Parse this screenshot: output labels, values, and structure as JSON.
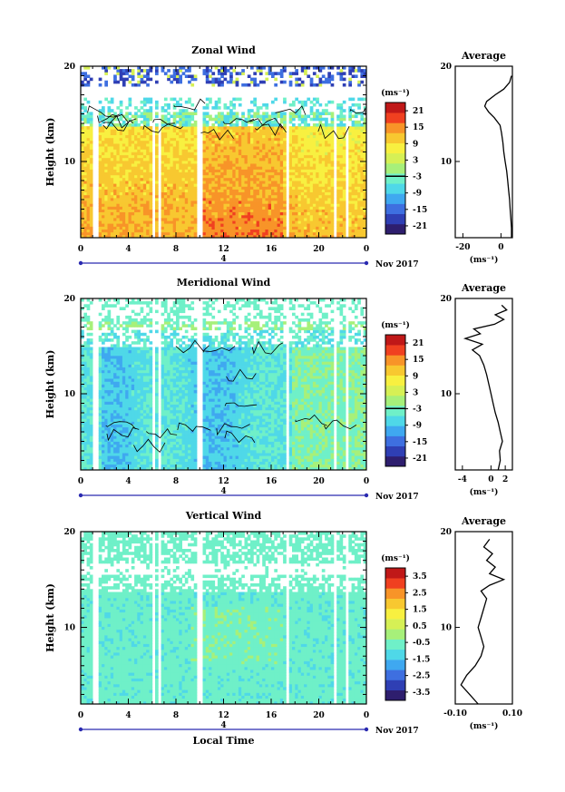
{
  "chart_data": [
    {
      "type": "heatmap",
      "title": "Zonal Wind",
      "ylabel": "Height (km)",
      "xlabel": "",
      "x_ticks": [
        "0",
        "4",
        "8",
        "12",
        "16",
        "20",
        "0"
      ],
      "xlim": [
        0,
        24
      ],
      "y_ticks": [
        "20",
        "10"
      ],
      "ylim": [
        2,
        20
      ],
      "date_label": "Nov 2017",
      "day_label": "4",
      "colorbar": {
        "unit_label": "(ms⁻¹)",
        "ticks": [
          "21",
          "15",
          "9",
          "3",
          "-3",
          "-9",
          "-15",
          "-21"
        ],
        "range": [
          -24,
          24
        ]
      },
      "profile": {
        "title": "Average",
        "x_ticks": [
          "-20",
          "0"
        ],
        "xlim": [
          -24,
          6
        ],
        "xlabel": "(ms⁻¹)",
        "y_ticks": [
          "20",
          "10"
        ],
        "points": [
          [
            5.5,
            2
          ],
          [
            5.5,
            3
          ],
          [
            5.2,
            4
          ],
          [
            4.8,
            5
          ],
          [
            4.5,
            6
          ],
          [
            4.0,
            7
          ],
          [
            3.5,
            8
          ],
          [
            3.0,
            9
          ],
          [
            2.2,
            10
          ],
          [
            1.5,
            11
          ],
          [
            1.0,
            12
          ],
          [
            0.3,
            13
          ],
          [
            -0.5,
            13.8
          ],
          [
            -3.5,
            14.6
          ],
          [
            -6.5,
            15.2
          ],
          [
            -8.5,
            15.8
          ],
          [
            -7.5,
            16.3
          ],
          [
            -3.0,
            17
          ],
          [
            1.5,
            17.6
          ],
          [
            4.5,
            18.3
          ],
          [
            5.5,
            19
          ]
        ]
      }
    },
    {
      "type": "heatmap",
      "title": "Meridional Wind",
      "ylabel": "Height (km)",
      "xlabel": "",
      "x_ticks": [
        "0",
        "4",
        "8",
        "12",
        "16",
        "20",
        "0"
      ],
      "xlim": [
        0,
        24
      ],
      "y_ticks": [
        "20",
        "10"
      ],
      "ylim": [
        2,
        20
      ],
      "date_label": "Nov 2017",
      "day_label": "4",
      "colorbar": {
        "unit_label": "(ms⁻¹)",
        "ticks": [
          "21",
          "15",
          "9",
          "3",
          "-3",
          "-9",
          "-15",
          "-21"
        ],
        "range": [
          -24,
          24
        ]
      },
      "profile": {
        "title": "Average",
        "x_ticks": [
          "-4",
          "0",
          "2"
        ],
        "xlim": [
          -5,
          3
        ],
        "xlabel": "(ms⁻¹)",
        "y_ticks": [
          "20",
          "10"
        ],
        "points": [
          [
            1.0,
            2
          ],
          [
            1.3,
            3
          ],
          [
            1.2,
            4
          ],
          [
            1.6,
            5
          ],
          [
            1.3,
            6
          ],
          [
            1.0,
            7
          ],
          [
            0.6,
            8
          ],
          [
            0.3,
            9
          ],
          [
            0.0,
            10
          ],
          [
            -0.3,
            11
          ],
          [
            -0.6,
            12
          ],
          [
            -1.0,
            13
          ],
          [
            -1.6,
            14
          ],
          [
            -2.6,
            14.6
          ],
          [
            -1.2,
            15.2
          ],
          [
            -3.6,
            15.8
          ],
          [
            -1.5,
            16.3
          ],
          [
            -2.4,
            16.8
          ],
          [
            0.5,
            17.3
          ],
          [
            1.8,
            17.8
          ],
          [
            0.6,
            18.3
          ],
          [
            2.2,
            18.8
          ],
          [
            1.5,
            19.3
          ]
        ]
      }
    },
    {
      "type": "heatmap",
      "title": "Vertical Wind",
      "ylabel": "Height (km)",
      "xlabel": "Local Time",
      "x_ticks": [
        "0",
        "4",
        "8",
        "12",
        "16",
        "20",
        "0"
      ],
      "xlim": [
        0,
        24
      ],
      "y_ticks": [
        "20",
        "10"
      ],
      "ylim": [
        2,
        20
      ],
      "date_label": "Nov 2017",
      "day_label": "4",
      "colorbar": {
        "unit_label": "(ms⁻¹)",
        "ticks": [
          "3.5",
          "2.5",
          "1.5",
          "0.5",
          "-0.5",
          "-1.5",
          "-2.5",
          "-3.5"
        ],
        "range": [
          -4,
          4
        ]
      },
      "profile": {
        "title": "Average",
        "x_ticks": [
          "-0.10",
          "0.10"
        ],
        "xlim": [
          -0.1,
          0.1
        ],
        "xlabel": "(ms⁻¹)",
        "y_ticks": [
          "20",
          "10"
        ],
        "points": [
          [
            -0.02,
            2
          ],
          [
            -0.05,
            3
          ],
          [
            -0.08,
            4
          ],
          [
            -0.06,
            5
          ],
          [
            -0.03,
            6
          ],
          [
            -0.01,
            7
          ],
          [
            0.0,
            8
          ],
          [
            -0.01,
            9
          ],
          [
            -0.02,
            10
          ],
          [
            -0.01,
            11
          ],
          [
            0.0,
            12
          ],
          [
            0.01,
            13
          ],
          [
            -0.01,
            13.8
          ],
          [
            0.02,
            14.4
          ],
          [
            0.07,
            15
          ],
          [
            0.02,
            15.6
          ],
          [
            0.04,
            16.3
          ],
          [
            0.01,
            17
          ],
          [
            0.03,
            17.7
          ],
          [
            0.0,
            18.4
          ],
          [
            0.02,
            19.2
          ]
        ]
      }
    }
  ]
}
